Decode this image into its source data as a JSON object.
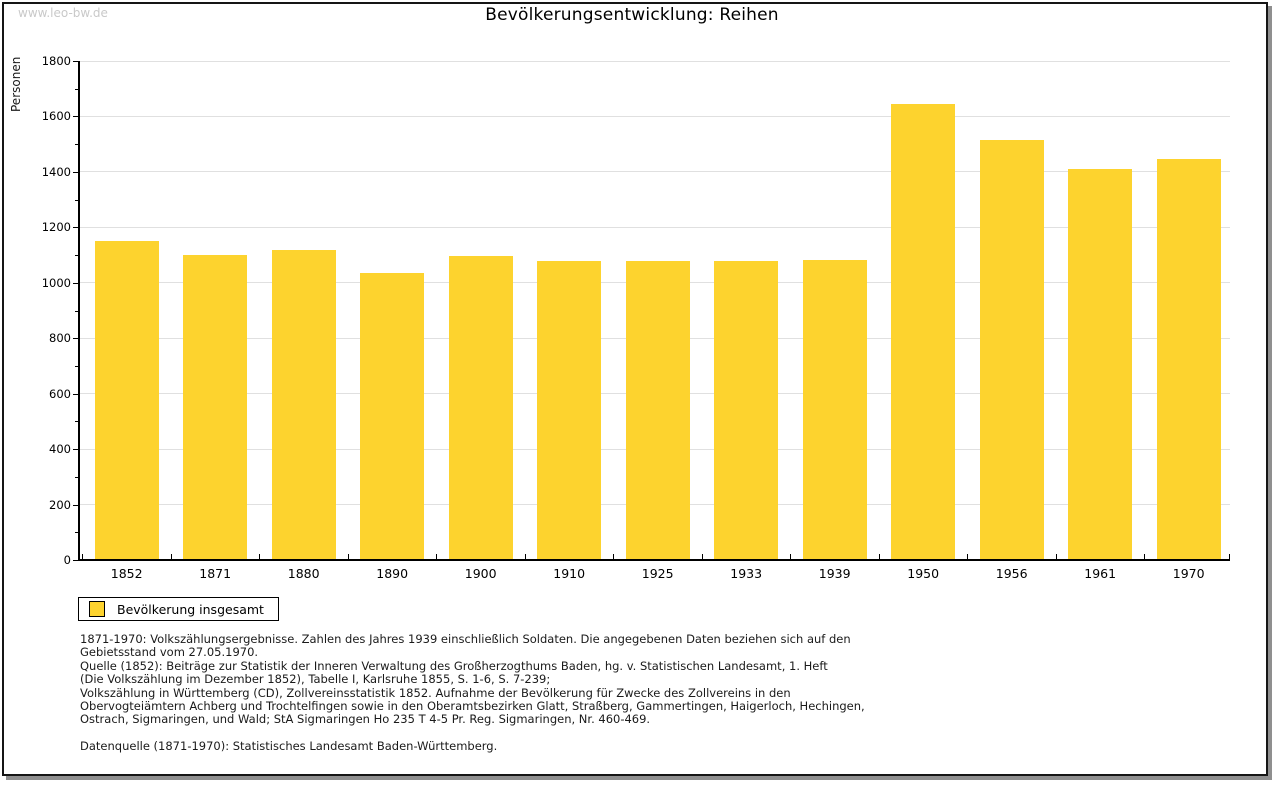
{
  "watermark": "www.leo-bw.de",
  "title": "Bevölkerungsentwicklung: Reihen",
  "chart_data": {
    "type": "bar",
    "title": "Bevölkerungsentwicklung: Reihen",
    "categories": [
      "1852",
      "1871",
      "1880",
      "1890",
      "1900",
      "1910",
      "1925",
      "1933",
      "1939",
      "1950",
      "1956",
      "1961",
      "1970"
    ],
    "values": [
      1150,
      1100,
      1120,
      1035,
      1095,
      1080,
      1078,
      1078,
      1083,
      1645,
      1515,
      1410,
      1445
    ],
    "series_name": "Bevölkerung insgesamt",
    "xlabel": "",
    "ylabel": "Personen",
    "ylim": [
      0,
      1800
    ],
    "ytick_step": 200,
    "yminor_step": 100,
    "grid": true,
    "legend_position": "bottom-left",
    "bar_color": "#fdd32e",
    "gridline_color": "#e0e0e0",
    "axis_color": "#000000"
  },
  "legend": {
    "label": "Bevölkerung insgesamt",
    "swatch_color": "#fdd32e"
  },
  "notes": {
    "lines": [
      "1871-1970: Volkszählungsergebnisse. Zahlen des Jahres 1939 einschließlich Soldaten. Die angegebenen Daten beziehen sich auf den",
      "Gebietsstand vom 27.05.1970.",
      "Quelle (1852): Beiträge zur Statistik der Inneren Verwaltung des Großherzogthums Baden, hg. v. Statistischen Landesamt, 1. Heft",
      "(Die Volkszählung im Dezember 1852), Tabelle I, Karlsruhe 1855, S. 1-6, S. 7-239;",
      "Volkszählung in Württemberg (CD), Zollvereinsstatistik 1852. Aufnahme der Bevölkerung für Zwecke des Zollvereins in den",
      "Obervogteiämtern Achberg und Trochtelfingen sowie in den Oberamtsbezirken Glatt, Straßberg, Gammertingen, Haigerloch, Hechingen,",
      "Ostrach, Sigmaringen, und Wald; StA Sigmaringen Ho 235 T 4-5 Pr. Reg. Sigmaringen, Nr. 460-469.",
      "",
      "Datenquelle (1871-1970): Statistisches Landesamt Baden-Württemberg."
    ]
  }
}
